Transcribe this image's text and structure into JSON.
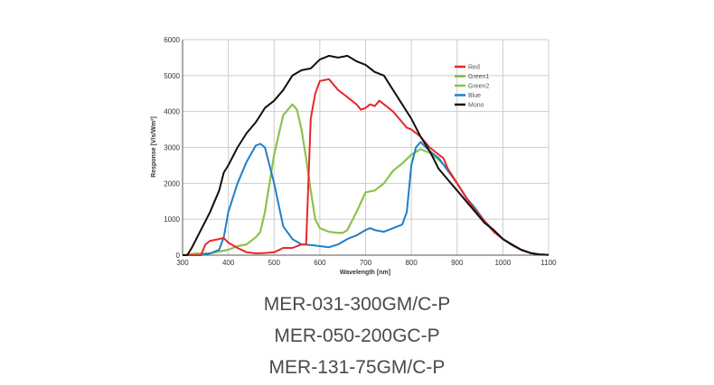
{
  "chart_data": {
    "type": "line",
    "title": "",
    "xlabel": "Wavelength [nm]",
    "ylabel": "Response [V/s/Wm²]",
    "xlim": [
      300,
      1100
    ],
    "ylim": [
      0,
      6000
    ],
    "xticks": [
      "300",
      "400",
      "500",
      "600",
      "700",
      "800",
      "900",
      "1000",
      "1100"
    ],
    "yticks": [
      "0",
      "1000",
      "2000",
      "3000",
      "4000",
      "5000",
      "6000"
    ],
    "grid": true,
    "legend_position": "top-right",
    "series": [
      {
        "name": "Red",
        "color": "#e8262a",
        "x": [
          300,
          340,
          350,
          360,
          380,
          390,
          400,
          420,
          440,
          460,
          480,
          500,
          520,
          540,
          560,
          570,
          580,
          590,
          600,
          620,
          640,
          660,
          680,
          690,
          700,
          710,
          720,
          730,
          740,
          760,
          780,
          790,
          800,
          820,
          840,
          860,
          870,
          880,
          900,
          920,
          940,
          960,
          980,
          1000,
          1020,
          1040,
          1060,
          1080,
          1100
        ],
        "y": [
          0,
          0,
          300,
          400,
          450,
          480,
          350,
          200,
          80,
          50,
          60,
          80,
          200,
          200,
          300,
          300,
          3800,
          4500,
          4850,
          4900,
          4600,
          4400,
          4200,
          4050,
          4100,
          4200,
          4150,
          4300,
          4200,
          4000,
          3700,
          3550,
          3500,
          3300,
          3000,
          2800,
          2700,
          2400,
          2000,
          1600,
          1250,
          950,
          650,
          450,
          280,
          150,
          60,
          20,
          10
        ]
      },
      {
        "name": "Green1",
        "color": "#7cb342",
        "x": [
          300,
          330,
          360,
          380,
          400,
          420,
          440,
          460,
          470,
          480,
          500,
          520,
          540,
          550,
          560,
          570,
          580,
          590,
          600,
          620,
          640,
          650,
          660,
          680,
          700,
          720,
          740,
          760,
          780,
          800,
          820,
          840,
          860,
          880,
          900,
          920,
          940,
          960,
          980,
          1000,
          1020,
          1040,
          1060,
          1080,
          1100
        ],
        "y": [
          0,
          50,
          50,
          100,
          150,
          250,
          300,
          500,
          650,
          1200,
          2800,
          3900,
          4200,
          4050,
          3500,
          2700,
          1800,
          1000,
          750,
          650,
          620,
          620,
          700,
          1200,
          1750,
          1800,
          2000,
          2350,
          2550,
          2800,
          2950,
          2850,
          2650,
          2400,
          2000,
          1600,
          1250,
          950,
          650,
          450,
          280,
          150,
          60,
          20,
          10
        ]
      },
      {
        "name": "Green2",
        "color": "#8bc34a",
        "x": [
          300,
          330,
          360,
          380,
          400,
          420,
          440,
          460,
          470,
          480,
          500,
          520,
          540,
          550,
          560,
          570,
          580,
          590,
          600,
          620,
          640,
          650,
          660,
          680,
          700,
          720,
          740,
          760,
          780,
          800,
          820,
          840,
          860,
          880,
          900,
          920,
          940,
          960,
          980,
          1000,
          1020,
          1040,
          1060,
          1080,
          1100
        ],
        "y": [
          0,
          50,
          50,
          100,
          150,
          250,
          300,
          500,
          650,
          1200,
          2800,
          3900,
          4200,
          4050,
          3500,
          2700,
          1800,
          1000,
          750,
          650,
          620,
          620,
          700,
          1200,
          1750,
          1800,
          2000,
          2350,
          2550,
          2800,
          2950,
          2850,
          2650,
          2400,
          2000,
          1600,
          1250,
          950,
          650,
          450,
          280,
          150,
          60,
          20,
          10
        ]
      },
      {
        "name": "Blue",
        "color": "#1f7fc9",
        "x": [
          300,
          340,
          360,
          380,
          390,
          400,
          420,
          440,
          460,
          470,
          480,
          490,
          500,
          520,
          540,
          560,
          580,
          600,
          620,
          640,
          660,
          680,
          700,
          710,
          720,
          740,
          760,
          780,
          790,
          800,
          810,
          820,
          840,
          860,
          880,
          900,
          920,
          940,
          960,
          980,
          1000,
          1020,
          1040,
          1060,
          1080,
          1100
        ],
        "y": [
          0,
          0,
          50,
          150,
          500,
          1200,
          2000,
          2600,
          3050,
          3100,
          3000,
          2500,
          2000,
          800,
          450,
          300,
          280,
          250,
          220,
          300,
          450,
          550,
          700,
          750,
          700,
          650,
          750,
          850,
          1200,
          2500,
          3000,
          3150,
          2900,
          2700,
          2350,
          2000,
          1600,
          1300,
          950,
          680,
          450,
          280,
          150,
          60,
          20,
          10
        ]
      },
      {
        "name": "Mono",
        "color": "#111111",
        "x": [
          300,
          310,
          320,
          340,
          360,
          380,
          390,
          400,
          420,
          440,
          460,
          470,
          480,
          500,
          520,
          540,
          560,
          580,
          600,
          620,
          640,
          660,
          680,
          700,
          720,
          740,
          760,
          780,
          800,
          820,
          840,
          860,
          880,
          900,
          920,
          940,
          960,
          980,
          1000,
          1020,
          1040,
          1060,
          1080,
          1100
        ],
        "y": [
          0,
          0,
          200,
          700,
          1200,
          1800,
          2300,
          2500,
          3000,
          3400,
          3700,
          3900,
          4100,
          4300,
          4600,
          5000,
          5150,
          5200,
          5450,
          5550,
          5500,
          5550,
          5400,
          5300,
          5100,
          5000,
          4600,
          4200,
          3800,
          3300,
          2900,
          2400,
          2100,
          1800,
          1500,
          1200,
          900,
          700,
          450,
          300,
          150,
          60,
          20,
          10
        ]
      }
    ]
  },
  "captions": [
    "MER-031-300GM/C-P",
    "MER-050-200GC-P",
    "MER-131-75GM/C-P"
  ]
}
